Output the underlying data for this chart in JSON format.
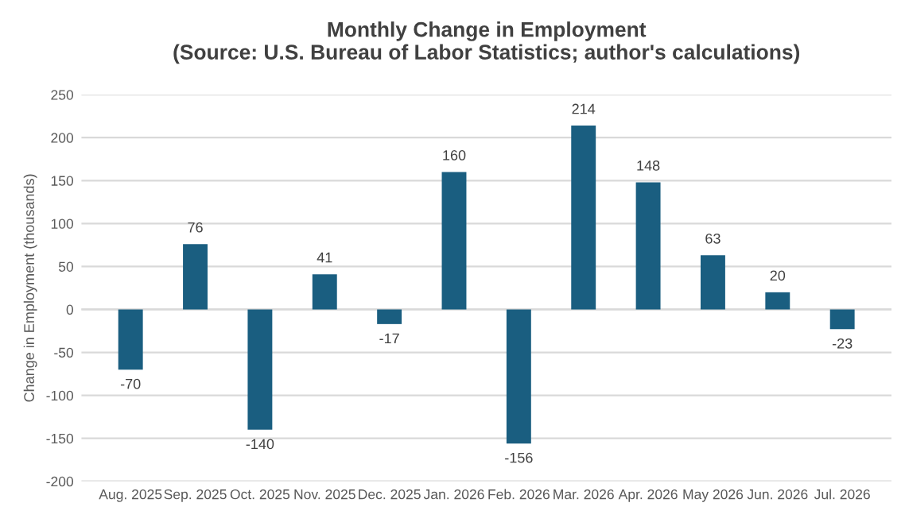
{
  "chart_data": {
    "type": "bar",
    "title": "Monthly Change in Employment\n(Source: U.S. Bureau of Labor Statistics; author's calculations)",
    "ylabel": "Change in Employment (thousands)",
    "categories": [
      "Aug. 2025",
      "Sep. 2025",
      "Oct. 2025",
      "Nov. 2025",
      "Dec. 2025",
      "Jan. 2026",
      "Feb. 2026",
      "Mar. 2026",
      "Apr. 2026",
      "May 2026",
      "Jun. 2026",
      "Jul. 2026"
    ],
    "values": [
      -70,
      76,
      -140,
      41,
      -17,
      160,
      -156,
      214,
      148,
      63,
      20,
      -23
    ],
    "color": "#1a5e80",
    "ylim": [
      -200,
      250
    ],
    "yticks": [
      -200,
      -150,
      -100,
      -50,
      0,
      50,
      100,
      150,
      200,
      250
    ],
    "grid": "y",
    "data_labels": true,
    "legend": false
  }
}
